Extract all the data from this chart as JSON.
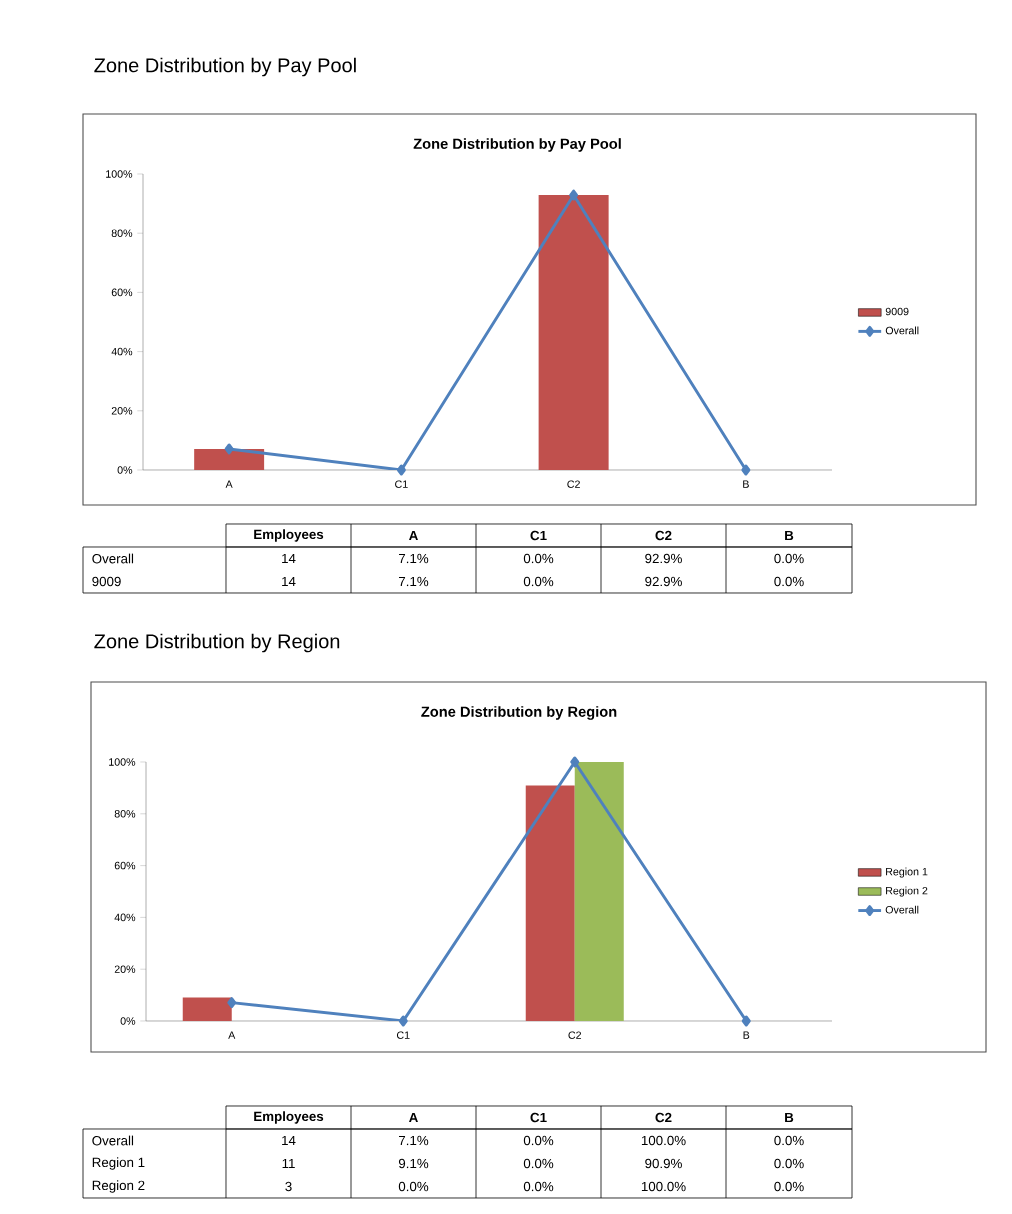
{
  "chart_data": [
    {
      "type": "bar",
      "title": "Zone Distribution by Pay Pool",
      "categories": [
        "A",
        "C1",
        "C2",
        "B"
      ],
      "series": [
        {
          "name": "9009",
          "color": "#c0504d",
          "values": [
            7.1,
            0,
            92.9,
            0
          ]
        },
        {
          "name": "Overall",
          "type": "line",
          "color": "#4f81bd",
          "marker": "diamond",
          "values": [
            7.1,
            0,
            92.9,
            0
          ]
        }
      ],
      "ylim": [
        0,
        100
      ],
      "yticks": [
        {
          "value": 0,
          "label": "0%"
        },
        {
          "value": 20,
          "label": "20%"
        },
        {
          "value": 40,
          "label": "40%"
        },
        {
          "value": 60,
          "label": "60%"
        },
        {
          "value": 80,
          "label": "80%"
        },
        {
          "value": 100,
          "label": "100%"
        }
      ],
      "legend": "right",
      "annotations": [
        "Zone Distribution by Pay Pool"
      ]
    },
    {
      "type": "other",
      "annotations": [
        "Employees",
        "A",
        "C1",
        "C2",
        "B",
        "Overall",
        "14",
        "7.1%",
        "0.0%",
        "92.9%",
        "0.0%",
        "9009",
        "14",
        "7.1%",
        "0.0%",
        "92.9%",
        "0.0%"
      ]
    },
    {
      "type": "bar",
      "title": "Zone Distribution by Region",
      "categories": [
        "A",
        "C1",
        "C2",
        "B"
      ],
      "series": [
        {
          "name": "Region 1",
          "color": "#c0504d",
          "values": [
            9.1,
            0,
            90.9,
            0
          ]
        },
        {
          "name": "Region 2",
          "color": "#9bbb59",
          "values": [
            0,
            0,
            100,
            0
          ]
        },
        {
          "name": "Overall",
          "type": "line",
          "color": "#4f81bd",
          "marker": "diamond",
          "values": [
            7.1,
            0,
            100,
            0
          ]
        }
      ],
      "ylim": [
        0,
        100
      ],
      "yticks": [
        {
          "value": 0,
          "label": "0%"
        },
        {
          "value": 20,
          "label": "20%"
        },
        {
          "value": 40,
          "label": "40%"
        },
        {
          "value": 60,
          "label": "60%"
        },
        {
          "value": 80,
          "label": "80%"
        },
        {
          "value": 100,
          "label": "100%"
        }
      ],
      "legend": "right",
      "annotations": [
        "Zone Distribution by Region"
      ]
    },
    {
      "type": "other",
      "annotations": [
        "Employees",
        "A",
        "C1",
        "C2",
        "B",
        "Overall",
        "14",
        "7.1%",
        "0.0%",
        "100.0%",
        "0.0%",
        "Region 1",
        "11",
        "9.1%",
        "0.0%",
        "90.9%",
        "0.0%",
        "Region 2",
        "3",
        "0.0%",
        "0.0%",
        "100.0%",
        "0.0%"
      ]
    }
  ]
}
